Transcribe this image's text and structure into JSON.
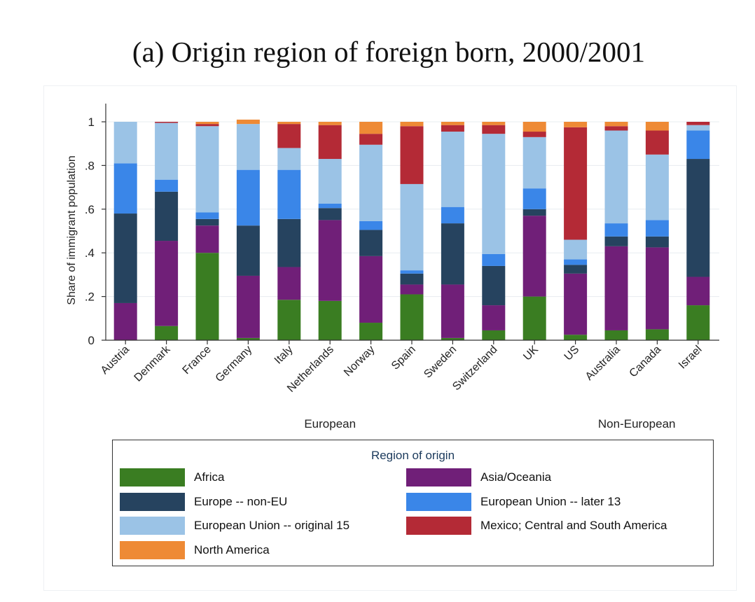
{
  "title": "(a) Origin region of foreign born, 2000/2001",
  "chart_data": {
    "type": "bar",
    "stacked": true,
    "ylabel": "Share of immigrant population",
    "ylim": [
      0,
      1
    ],
    "yticks": [
      0,
      0.2,
      0.4,
      0.6,
      0.8,
      1
    ],
    "ytick_labels": [
      "0",
      ".2",
      ".4",
      ".6",
      ".8",
      "1"
    ],
    "categories": [
      "Austria",
      "Denmark",
      "France",
      "Germany",
      "Italy",
      "Netherlands",
      "Norway",
      "Spain",
      "Sweden",
      "Switzerland",
      "UK",
      "US",
      "Australia",
      "Canada",
      "Israel"
    ],
    "groups": [
      {
        "label": "European",
        "from": 0,
        "to": 10
      },
      {
        "label": "Non-European",
        "from": 11,
        "to": 14
      }
    ],
    "legend_title": "Region of origin",
    "legend_position": "bottom",
    "grid": true,
    "series": [
      {
        "name": "Africa",
        "color": "#3a7d22",
        "values": [
          0.0,
          0.065,
          0.4,
          0.01,
          0.185,
          0.18,
          0.08,
          0.21,
          0.01,
          0.045,
          0.2,
          0.025,
          0.045,
          0.05,
          0.16
        ]
      },
      {
        "name": "Asia/Oceania",
        "color": "#701f78",
        "values": [
          0.17,
          0.39,
          0.125,
          0.285,
          0.15,
          0.37,
          0.305,
          0.045,
          0.245,
          0.115,
          0.37,
          0.28,
          0.385,
          0.375,
          0.13
        ]
      },
      {
        "name": "Europe -- non-EU",
        "color": "#26435f",
        "values": [
          0.41,
          0.225,
          0.03,
          0.23,
          0.22,
          0.055,
          0.12,
          0.05,
          0.28,
          0.18,
          0.03,
          0.04,
          0.045,
          0.05,
          0.54
        ]
      },
      {
        "name": "European Union -- later 13",
        "color": "#3a86e8",
        "values": [
          0.23,
          0.055,
          0.03,
          0.255,
          0.225,
          0.02,
          0.04,
          0.015,
          0.075,
          0.055,
          0.095,
          0.025,
          0.06,
          0.075,
          0.13
        ]
      },
      {
        "name": "European Union -- original 15",
        "color": "#9bc3e6",
        "values": [
          0.19,
          0.26,
          0.395,
          0.21,
          0.1,
          0.205,
          0.35,
          0.395,
          0.345,
          0.55,
          0.235,
          0.09,
          0.425,
          0.3,
          0.025
        ]
      },
      {
        "name": "Mexico; Central and South America",
        "color": "#b42a36",
        "values": [
          0.0,
          0.005,
          0.01,
          0.0,
          0.11,
          0.155,
          0.05,
          0.265,
          0.03,
          0.04,
          0.025,
          0.515,
          0.02,
          0.11,
          0.015
        ]
      },
      {
        "name": "North America",
        "color": "#ee8a35",
        "values": [
          0.0,
          0.0,
          0.01,
          0.02,
          0.01,
          0.015,
          0.055,
          0.02,
          0.015,
          0.015,
          0.045,
          0.025,
          0.02,
          0.04,
          0.0
        ]
      }
    ]
  }
}
